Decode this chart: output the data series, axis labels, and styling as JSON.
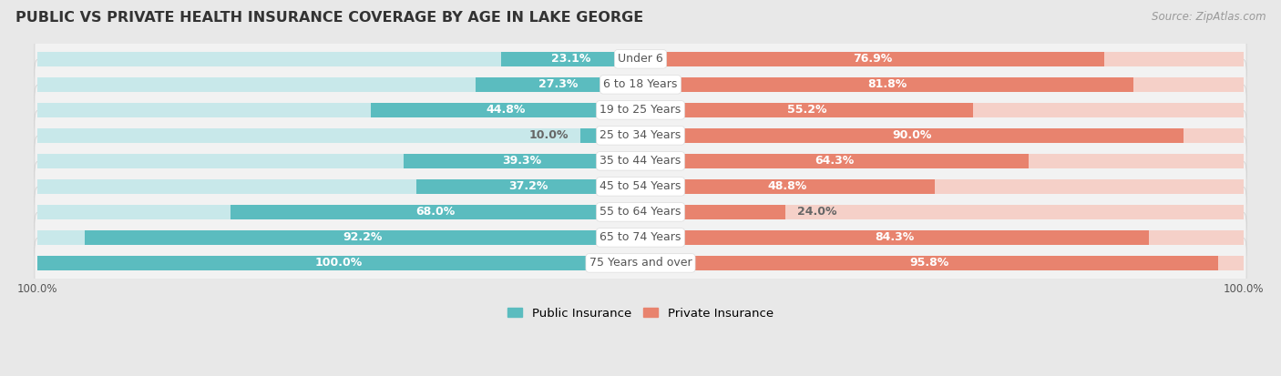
{
  "title": "PUBLIC VS PRIVATE HEALTH INSURANCE COVERAGE BY AGE IN LAKE GEORGE",
  "source": "Source: ZipAtlas.com",
  "categories": [
    "Under 6",
    "6 to 18 Years",
    "19 to 25 Years",
    "25 to 34 Years",
    "35 to 44 Years",
    "45 to 54 Years",
    "55 to 64 Years",
    "65 to 74 Years",
    "75 Years and over"
  ],
  "public_values": [
    23.1,
    27.3,
    44.8,
    10.0,
    39.3,
    37.2,
    68.0,
    92.2,
    100.0
  ],
  "private_values": [
    76.9,
    81.8,
    55.2,
    90.0,
    64.3,
    48.8,
    24.0,
    84.3,
    95.8
  ],
  "public_color": "#5bbcbf",
  "private_color": "#e8836e",
  "public_bg_color": "#c8e8ea",
  "private_bg_color": "#f5d0c8",
  "row_bg_color": "#f2f2f2",
  "outer_bg_color": "#e8e8e8",
  "title_color": "#333333",
  "source_color": "#999999",
  "value_label_inside_color": "#ffffff",
  "value_label_outside_color": "#666666",
  "cat_label_color": "#555555",
  "label_fontsize": 9.0,
  "title_fontsize": 11.5,
  "source_fontsize": 8.5,
  "max_val": 100.0,
  "legend_public": "Public Insurance",
  "legend_private": "Private Insurance",
  "axis_label_fontsize": 8.5
}
